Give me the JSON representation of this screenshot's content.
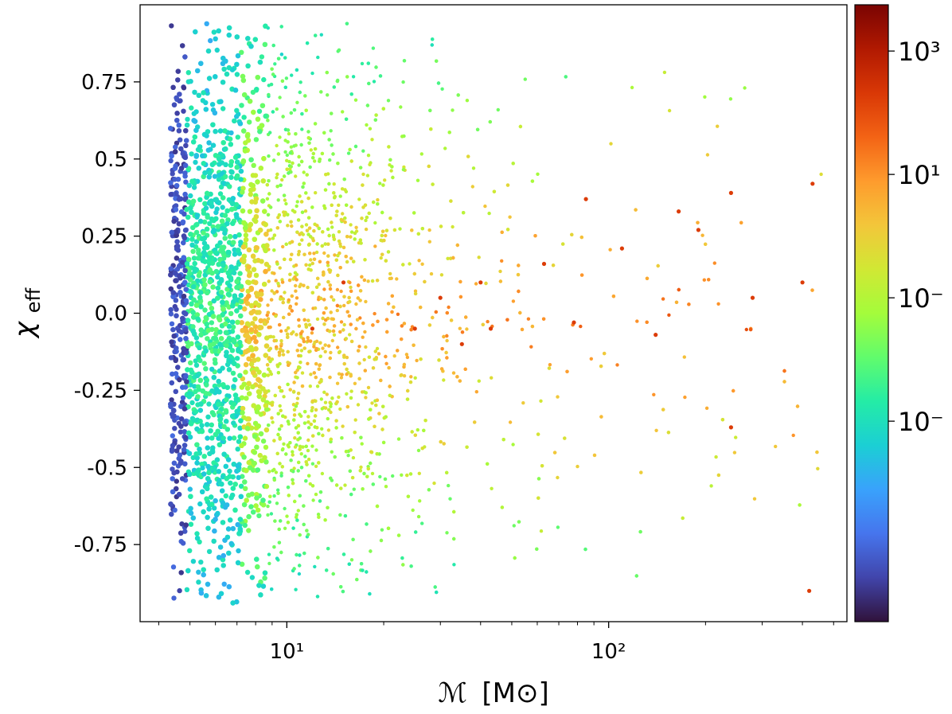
{
  "chart_data": {
    "type": "scatter",
    "title": "",
    "xlabel_symbol": "ℳ",
    "xlabel_unit": "[M⊙]",
    "ylabel_symbol": "χ",
    "ylabel_sub": "eff",
    "x_scale": "log",
    "xlim": [
      3.5,
      550
    ],
    "ylim": [
      -1.0,
      1.0
    ],
    "x_tick_values": [
      10,
      100
    ],
    "x_tick_labels": [
      "10¹",
      "10²"
    ],
    "y_tick_values": [
      0.75,
      0.5,
      0.25,
      0.0,
      -0.25,
      -0.5,
      -0.75
    ],
    "y_tick_labels": [
      "0.75",
      "0.5",
      "0.25",
      "0.0",
      "-0.25",
      "-0.5",
      "-0.75"
    ],
    "grid": false,
    "legend": "none",
    "colormap": "turbo",
    "colorbar": {
      "scale": "log",
      "tick_labels_visible": [
        "10³",
        "10¹",
        "10⁻",
        "10⁻"
      ],
      "stops": [
        "#30123b",
        "#4145ab",
        "#4675ed",
        "#39a2fc",
        "#1bcfd4",
        "#24eca6",
        "#61fc6c",
        "#a4fc3b",
        "#d1e834",
        "#f3c63a",
        "#fe9b2d",
        "#f36315",
        "#d93806",
        "#b11901",
        "#7a0402"
      ]
    },
    "series": [
      {
        "points": [
          {
            "x": 12,
            "y": -0.05
          },
          {
            "x": 15,
            "y": 0.1
          },
          {
            "x": 25,
            "y": -0.05
          },
          {
            "x": 30,
            "y": 0.05
          },
          {
            "x": 35,
            "y": -0.1
          },
          {
            "x": 40,
            "y": 0.1
          },
          {
            "x": 43,
            "y": -0.05
          },
          {
            "x": 63,
            "y": 0.16
          },
          {
            "x": 78,
            "y": -0.03
          },
          {
            "x": 85,
            "y": 0.37
          },
          {
            "x": 110,
            "y": 0.21
          },
          {
            "x": 140,
            "y": -0.07
          },
          {
            "x": 165,
            "y": 0.33
          },
          {
            "x": 190,
            "y": 0.27
          },
          {
            "x": 240,
            "y": 0.39
          },
          {
            "x": 240,
            "y": -0.37
          },
          {
            "x": 280,
            "y": 0.05
          },
          {
            "x": 400,
            "y": 0.1
          },
          {
            "x": 420,
            "y": -0.9
          },
          {
            "x": 430,
            "y": 0.42
          }
        ]
      }
    ]
  }
}
